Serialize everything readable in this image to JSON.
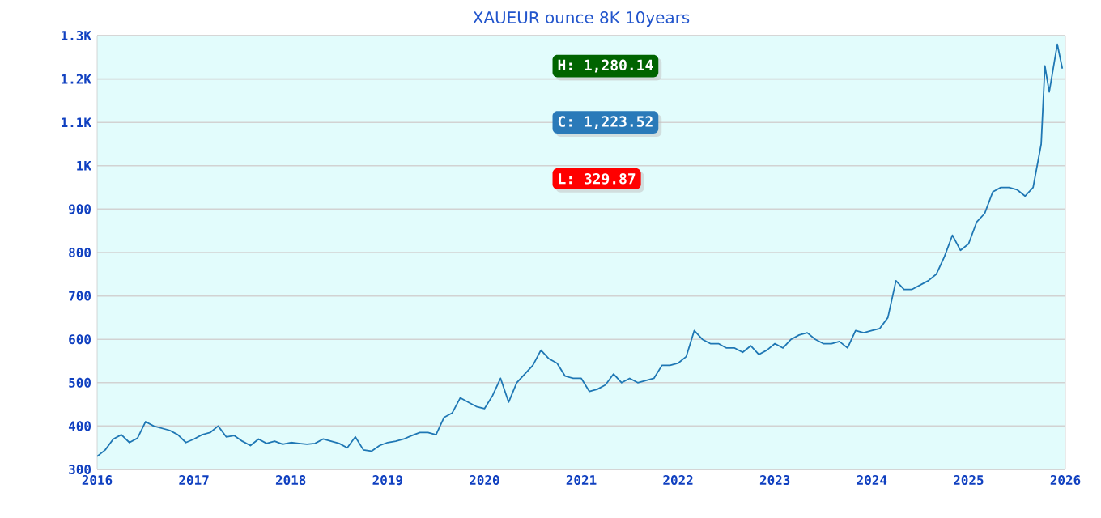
{
  "chart_data": {
    "type": "line",
    "title": "XAUEUR ounce 8K 10years",
    "x": [
      "2016-01",
      "2016-02",
      "2016-03",
      "2016-04",
      "2016-05",
      "2016-06",
      "2016-07",
      "2016-08",
      "2016-09",
      "2016-10",
      "2016-11",
      "2016-12",
      "2017-01",
      "2017-02",
      "2017-03",
      "2017-04",
      "2017-05",
      "2017-06",
      "2017-07",
      "2017-08",
      "2017-09",
      "2017-10",
      "2017-11",
      "2017-12",
      "2018-01",
      "2018-02",
      "2018-03",
      "2018-04",
      "2018-05",
      "2018-06",
      "2018-07",
      "2018-08",
      "2018-09",
      "2018-10",
      "2018-11",
      "2018-12",
      "2019-01",
      "2019-02",
      "2019-03",
      "2019-04",
      "2019-05",
      "2019-06",
      "2019-07",
      "2019-08",
      "2019-09",
      "2019-10",
      "2019-11",
      "2019-12",
      "2020-01",
      "2020-02",
      "2020-03",
      "2020-04",
      "2020-05",
      "2020-06",
      "2020-07",
      "2020-08",
      "2020-09",
      "2020-10",
      "2020-11",
      "2020-12",
      "2021-01",
      "2021-02",
      "2021-03",
      "2021-04",
      "2021-05",
      "2021-06",
      "2021-07",
      "2021-08",
      "2021-09",
      "2021-10",
      "2021-11",
      "2021-12",
      "2022-01",
      "2022-02",
      "2022-03",
      "2022-04",
      "2022-05",
      "2022-06",
      "2022-07",
      "2022-08",
      "2022-09",
      "2022-10",
      "2022-11",
      "2022-12",
      "2023-01",
      "2023-02",
      "2023-03",
      "2023-04",
      "2023-05",
      "2023-06",
      "2023-07",
      "2023-08",
      "2023-09",
      "2023-10",
      "2023-11",
      "2023-12",
      "2024-01",
      "2024-02",
      "2024-03",
      "2024-04",
      "2024-05",
      "2024-06",
      "2024-07",
      "2024-08",
      "2024-09",
      "2024-10",
      "2024-11",
      "2024-12",
      "2025-01",
      "2025-02",
      "2025-03",
      "2025-04",
      "2025-05",
      "2025-06",
      "2025-07",
      "2025-08",
      "2025-09",
      "2025-10",
      "2025-10-15",
      "2025-11",
      "2025-12",
      "2025-12-20"
    ],
    "series": [
      {
        "color": "#1f77b4",
        "values": [
          330,
          345,
          370,
          380,
          362,
          372,
          410,
          400,
          395,
          390,
          380,
          362,
          370,
          380,
          385,
          400,
          375,
          378,
          365,
          355,
          370,
          360,
          365,
          358,
          362,
          360,
          358,
          360,
          370,
          365,
          360,
          350,
          375,
          345,
          342,
          355,
          362,
          365,
          370,
          378,
          385,
          385,
          380,
          420,
          430,
          465,
          455,
          445,
          440,
          470,
          510,
          455,
          500,
          520,
          540,
          575,
          555,
          545,
          515,
          510,
          510,
          480,
          485,
          495,
          520,
          500,
          510,
          500,
          505,
          510,
          540,
          540,
          545,
          560,
          620,
          600,
          590,
          590,
          580,
          580,
          570,
          585,
          565,
          575,
          590,
          580,
          600,
          610,
          615,
          600,
          590,
          590,
          595,
          580,
          620,
          615,
          620,
          625,
          650,
          735,
          715,
          715,
          725,
          735,
          750,
          790,
          840,
          805,
          820,
          870,
          890,
          940,
          950,
          950,
          945,
          930,
          950,
          1050,
          1230,
          1170,
          1280,
          1224
        ]
      }
    ],
    "xlim": [
      "2016-01-01",
      "2026-01-01"
    ],
    "xticks": [
      {
        "value": "2016-01-01",
        "label": "2016"
      },
      {
        "value": "2017-01-01",
        "label": "2017"
      },
      {
        "value": "2018-01-01",
        "label": "2018"
      },
      {
        "value": "2019-01-01",
        "label": "2019"
      },
      {
        "value": "2020-01-01",
        "label": "2020"
      },
      {
        "value": "2021-01-01",
        "label": "2021"
      },
      {
        "value": "2022-01-01",
        "label": "2022"
      },
      {
        "value": "2023-01-01",
        "label": "2023"
      },
      {
        "value": "2024-01-01",
        "label": "2024"
      },
      {
        "value": "2025-01-01",
        "label": "2025"
      },
      {
        "value": "2026-01-01",
        "label": "2026"
      }
    ],
    "ylim": [
      300,
      1300
    ],
    "yticks": [
      300,
      400,
      500,
      600,
      700,
      800,
      900,
      {
        "value": 1000,
        "label": "1K"
      },
      {
        "value": 1100,
        "label": "1.1K"
      },
      {
        "value": 1200,
        "label": "1.2K"
      },
      {
        "value": 1300,
        "label": "1.3K"
      }
    ],
    "grid": "y",
    "annotations": [
      "H: 1,280.14",
      "C: 1,223.52",
      "L: 329.87"
    ]
  }
}
